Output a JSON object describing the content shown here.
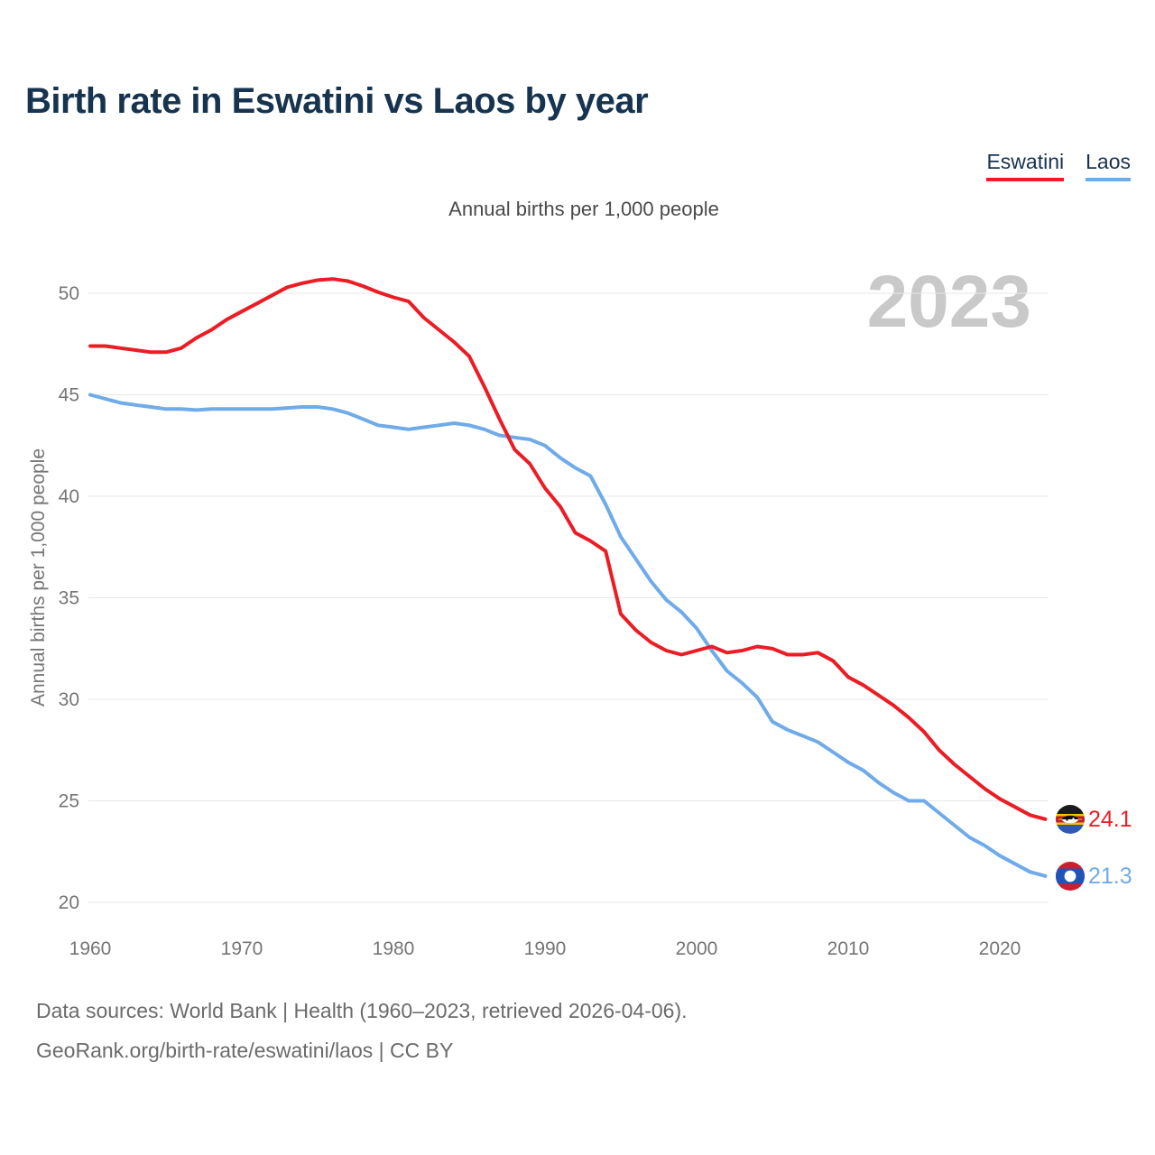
{
  "page": {
    "title": "Birth rate in Eswatini vs Laos by year",
    "subtitle": "Annual births per 1,000 people",
    "watermark_year": "2023",
    "footer_line1": "Data sources: World Bank | Health (1960–2023, retrieved 2026-04-06).",
    "footer_line2": "GeoRank.org/birth-rate/eswatini/laos | CC BY"
  },
  "legend": [
    {
      "label": "Eswatini",
      "color": "#ec1c24"
    },
    {
      "label": "Laos",
      "color": "#6fabe8"
    }
  ],
  "colors": {
    "eswatini_line": "#ec1c24",
    "laos_line": "#6fabe8",
    "title_text": "#16334f",
    "axis_text": "#757575",
    "subtitle_text": "#4a4a4a",
    "footer_text": "#6b6b6b",
    "gridline": "#e7e7e7",
    "watermark": "#c9c9c9"
  },
  "end_labels": [
    {
      "series": "Eswatini",
      "value": "24.1",
      "icon": "eswatini-flag-icon"
    },
    {
      "series": "Laos",
      "value": "21.3",
      "icon": "laos-flag-icon"
    }
  ],
  "chart_data": {
    "type": "line",
    "title": "Birth rate in Eswatini vs Laos by year",
    "subtitle": "Annual births per 1,000 people",
    "ylabel": "Annual births per 1,000 people",
    "xlabel": "",
    "grid": "horizontal",
    "legend_position": "top-right",
    "watermark": "2023",
    "x_ticks": [
      1960,
      1970,
      1980,
      1990,
      2000,
      2010,
      2020
    ],
    "y_ticks": [
      20,
      25,
      30,
      35,
      40,
      45,
      50
    ],
    "xlim": [
      1960,
      2023
    ],
    "ylim": [
      19,
      51.5
    ],
    "x": [
      1960,
      1961,
      1962,
      1963,
      1964,
      1965,
      1966,
      1967,
      1968,
      1969,
      1970,
      1971,
      1972,
      1973,
      1974,
      1975,
      1976,
      1977,
      1978,
      1979,
      1980,
      1981,
      1982,
      1983,
      1984,
      1985,
      1986,
      1987,
      1988,
      1989,
      1990,
      1991,
      1992,
      1993,
      1994,
      1995,
      1996,
      1997,
      1998,
      1999,
      2000,
      2001,
      2002,
      2003,
      2004,
      2005,
      2006,
      2007,
      2008,
      2009,
      2010,
      2011,
      2012,
      2013,
      2014,
      2015,
      2016,
      2017,
      2018,
      2019,
      2020,
      2021,
      2022,
      2023
    ],
    "series": [
      {
        "name": "Eswatini",
        "color": "#ec1c24",
        "end_label": "24.1",
        "values": [
          47.4,
          47.4,
          47.3,
          47.2,
          47.1,
          47.1,
          47.3,
          47.8,
          48.2,
          48.7,
          49.1,
          49.5,
          49.9,
          50.3,
          50.5,
          50.65,
          50.7,
          50.6,
          50.35,
          50.05,
          49.8,
          49.6,
          48.8,
          48.2,
          47.6,
          46.9,
          45.4,
          43.8,
          42.3,
          41.6,
          40.4,
          39.5,
          38.2,
          37.8,
          37.3,
          34.2,
          33.4,
          32.8,
          32.4,
          32.2,
          32.4,
          32.6,
          32.3,
          32.4,
          32.6,
          32.5,
          32.2,
          32.2,
          32.3,
          31.9,
          31.1,
          30.7,
          30.2,
          29.7,
          29.1,
          28.4,
          27.5,
          26.8,
          26.2,
          25.6,
          25.1,
          24.7,
          24.3,
          24.1
        ]
      },
      {
        "name": "Laos",
        "color": "#6fabe8",
        "end_label": "21.3",
        "values": [
          45.0,
          44.8,
          44.6,
          44.5,
          44.4,
          44.3,
          44.3,
          44.25,
          44.3,
          44.3,
          44.3,
          44.3,
          44.3,
          44.35,
          44.4,
          44.4,
          44.3,
          44.1,
          43.8,
          43.5,
          43.4,
          43.3,
          43.4,
          43.5,
          43.6,
          43.5,
          43.3,
          43.0,
          42.9,
          42.8,
          42.5,
          41.9,
          41.4,
          41.0,
          39.6,
          38.0,
          36.9,
          35.8,
          34.9,
          34.3,
          33.5,
          32.4,
          31.4,
          30.8,
          30.1,
          28.9,
          28.5,
          28.2,
          27.9,
          27.4,
          26.9,
          26.5,
          25.9,
          25.4,
          25.0,
          25.0,
          24.4,
          23.8,
          23.2,
          22.8,
          22.3,
          21.9,
          21.5,
          21.3
        ]
      }
    ]
  }
}
